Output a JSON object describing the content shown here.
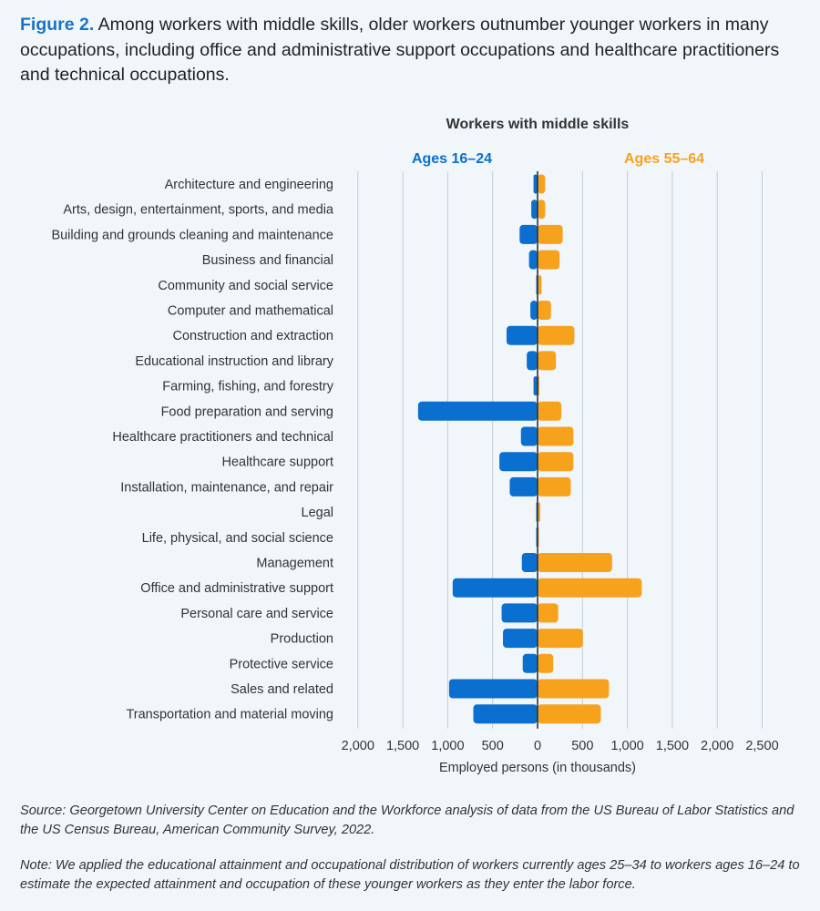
{
  "header": {
    "figure_label": "Figure 2.",
    "title": "Among workers with middle skills, older workers outnumber younger workers in many occupations, including office and administrative support occupations and healthcare practitioners and technical occupations."
  },
  "chart_data": {
    "type": "bar",
    "orientation": "horizontal-diverging",
    "title": "Workers with middle skills",
    "xlabel": "Employed persons (in thousands)",
    "xlim": [
      -2000,
      2500
    ],
    "x_ticks": [
      -2000,
      -1500,
      -1000,
      -500,
      0,
      500,
      1000,
      1500,
      2000,
      2500
    ],
    "x_tick_labels": [
      "2,000",
      "1,500",
      "1,000",
      "500",
      "0",
      "500",
      "1,000",
      "1,500",
      "2,000",
      "2,500"
    ],
    "grid": true,
    "colors": {
      "young": "#0a6fcf",
      "old": "#f7a21d"
    },
    "categories": [
      "Architecture and engineering",
      "Arts, design, entertainment, sports, and media",
      "Building and grounds cleaning and maintenance",
      "Business and financial",
      "Community and social service",
      "Computer and mathematical",
      "Construction and extraction",
      "Educational instruction and library",
      "Farming, fishing, and forestry",
      "Food preparation and serving",
      "Healthcare practitioners and technical",
      "Healthcare support",
      "Installation, maintenance, and repair",
      "Legal",
      "Life, physical, and social science",
      "Management",
      "Office and administrative support",
      "Personal care and service",
      "Production",
      "Protective service",
      "Sales and related",
      "Transportation and material moving"
    ],
    "series": [
      {
        "name": "Ages 16–24",
        "legend_position": "top-left",
        "values": [
          45,
          70,
          200,
          95,
          15,
          80,
          345,
          120,
          45,
          1330,
          185,
          425,
          310,
          15,
          15,
          175,
          945,
          400,
          385,
          165,
          985,
          715
        ]
      },
      {
        "name": "Ages 55–64",
        "legend_position": "top-right",
        "values": [
          85,
          85,
          280,
          245,
          45,
          150,
          410,
          205,
          20,
          265,
          400,
          400,
          370,
          30,
          15,
          830,
          1160,
          230,
          505,
          175,
          795,
          705
        ]
      }
    ]
  },
  "footer": {
    "source": "Source: Georgetown University Center on Education and the Workforce analysis of data from the US Bureau of Labor Statistics and the US Census Bureau, American Community Survey, 2022.",
    "note": "Note: We applied the educational attainment and occupational distribution of workers currently ages 25–34 to workers ages 16–24 to estimate the expected attainment and occupation of these younger workers as they enter the labor force."
  }
}
